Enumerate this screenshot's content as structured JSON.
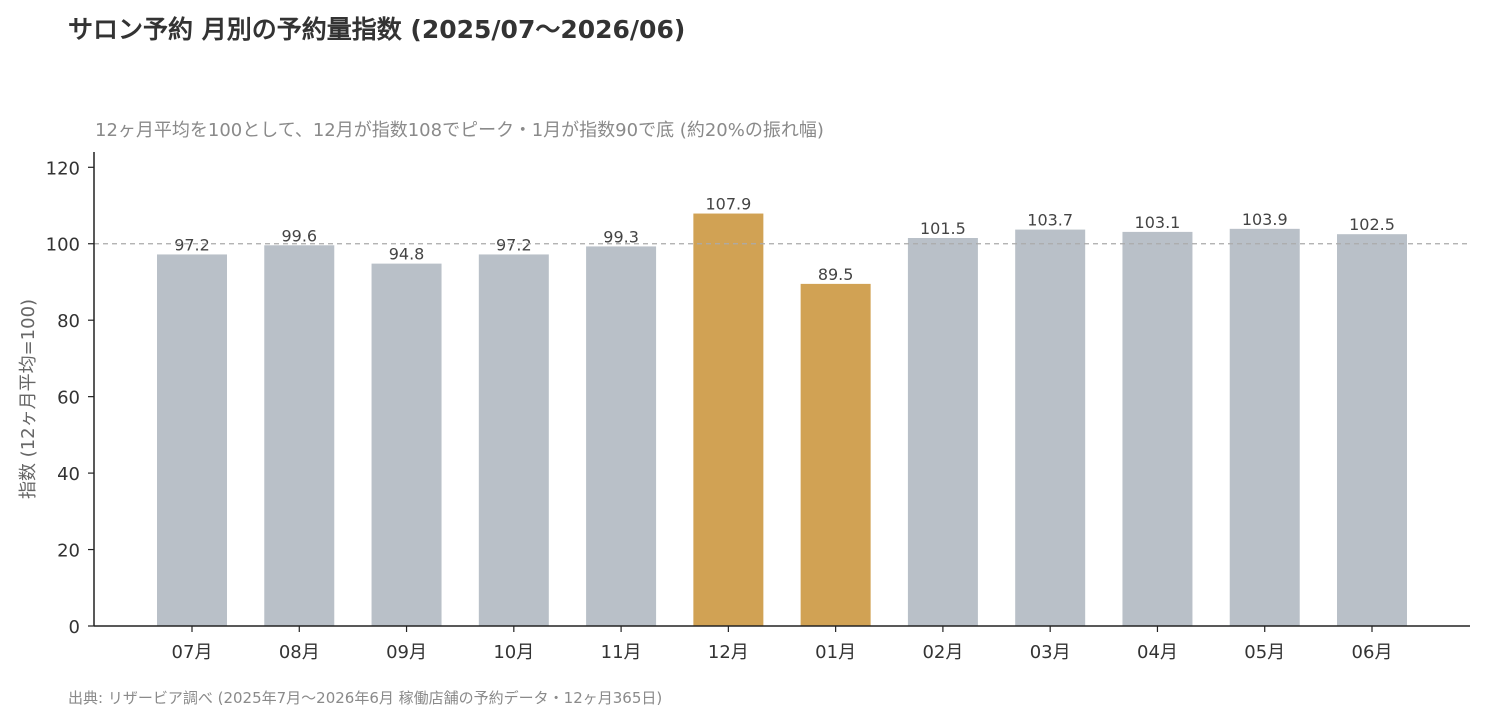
{
  "title": "サロン予約 月別の予約量指数 (2025/07〜2026/06)",
  "subtitle": "12ヶ月平均を100として、12月が指数108でピーク・1月が指数90で底 (約20%の振れ幅)",
  "source": "出典: リザービア調べ (2025年7月〜2026年6月 稼働店舗の予約データ・12ヶ月365日)",
  "chart_data": {
    "type": "bar",
    "categories": [
      "07月",
      "08月",
      "09月",
      "10月",
      "11月",
      "12月",
      "01月",
      "02月",
      "03月",
      "04月",
      "05月",
      "06月"
    ],
    "values": [
      97.2,
      99.6,
      94.8,
      97.2,
      99.3,
      107.9,
      89.5,
      101.5,
      103.7,
      103.1,
      103.9,
      102.5
    ],
    "value_labels": [
      "97.2",
      "99.6",
      "94.8",
      "97.2",
      "99.3",
      "107.9",
      "89.5",
      "101.5",
      "103.7",
      "103.1",
      "103.9",
      "102.5"
    ],
    "highlight_categories": [
      "12月",
      "01月"
    ],
    "ylabel": "指数 (12ヶ月平均=100)",
    "xlabel": "",
    "ylim": [
      0,
      124
    ],
    "yticks": [
      0,
      20,
      40,
      60,
      80,
      100,
      120
    ],
    "reference_line": 100,
    "grid": false,
    "colors": {
      "bar": "#b9c0c8",
      "highlight": "#d1a254",
      "reference_line": "#aaaaaa",
      "axis": "#222222"
    }
  }
}
